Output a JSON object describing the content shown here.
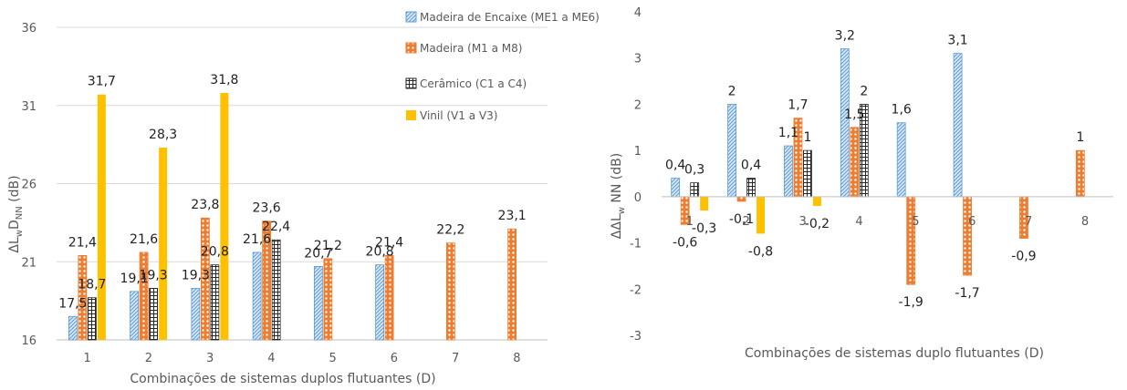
{
  "chart_data": [
    {
      "type": "bar",
      "categories": [
        "1",
        "2",
        "3",
        "4",
        "5",
        "6",
        "7",
        "8"
      ],
      "ylim": [
        16,
        36
      ],
      "yticks": [
        16,
        21,
        26,
        31,
        36
      ],
      "grid": true,
      "xlabel": "Combinações de sistemas duplos flutuantes (D)",
      "ylabel": "ΔLwDNN (dB)",
      "legend_position": "top-right",
      "series": [
        {
          "name": "Madeira de Encaixe (ME1 a ME6)",
          "pattern": "diagonal",
          "color": "#5b9bd5",
          "values": [
            17.5,
            19.1,
            19.3,
            21.6,
            20.7,
            20.8,
            null,
            null
          ]
        },
        {
          "name": "Madeira (M1 a M8)",
          "pattern": "dots",
          "color": "#ed7d31",
          "values": [
            21.4,
            21.6,
            23.8,
            23.6,
            21.2,
            21.4,
            22.2,
            23.1
          ]
        },
        {
          "name": "Cerâmico (C1 a C4)",
          "pattern": "grid",
          "color": "#262626",
          "values": [
            18.7,
            19.3,
            20.8,
            22.4,
            null,
            null,
            null,
            null
          ]
        },
        {
          "name": "Vinil (V1 a V3)",
          "pattern": "solid",
          "color": "#ffc000",
          "values": [
            31.7,
            28.3,
            31.8,
            null,
            null,
            null,
            null,
            null
          ]
        }
      ],
      "labels_text": [
        [
          "17,5",
          "19,1",
          "19,3",
          "21,6",
          "20,7",
          "20,8",
          "",
          ""
        ],
        [
          "21,4",
          "21,6",
          "23,8",
          "23,6",
          "21,2",
          "21,4",
          "22,2",
          "23,1"
        ],
        [
          "18,7",
          "19,3",
          "20,8",
          "22,4",
          "",
          "",
          "",
          ""
        ],
        [
          "31,7",
          "28,3",
          "31,8",
          "",
          "",
          "",
          "",
          ""
        ]
      ]
    },
    {
      "type": "bar",
      "categories": [
        "1",
        "2",
        "3",
        "4",
        "5",
        "6",
        "7",
        "8"
      ],
      "ylim": [
        -3,
        4
      ],
      "yticks": [
        -3,
        -2,
        -1,
        0,
        1,
        2,
        3,
        4
      ],
      "grid": false,
      "xlabel": "Combinações de sistemas duplo flutuantes (D)",
      "ylabel": "ΔΔLw NN (dB)",
      "series": [
        {
          "name": "Madeira de Encaixe (ME1 a ME6)",
          "pattern": "diagonal",
          "color": "#5b9bd5",
          "values": [
            0.4,
            2,
            1.1,
            3.2,
            1.6,
            3.1,
            null,
            null
          ]
        },
        {
          "name": "Madeira (M1 a M8)",
          "pattern": "dots",
          "color": "#ed7d31",
          "values": [
            -0.6,
            -0.1,
            1.7,
            1.5,
            -1.9,
            -1.7,
            -0.9,
            1
          ]
        },
        {
          "name": "Cerâmico (C1 a C4)",
          "pattern": "grid",
          "color": "#262626",
          "values": [
            0.3,
            0.4,
            1,
            2,
            null,
            null,
            null,
            null
          ]
        },
        {
          "name": "Vinil (V1 a V3)",
          "pattern": "solid",
          "color": "#ffc000",
          "values": [
            -0.3,
            -0.8,
            -0.2,
            null,
            null,
            null,
            null,
            null
          ]
        }
      ],
      "labels_text": [
        [
          "0,4",
          "2",
          "1,1",
          "3,2",
          "1,6",
          "3,1",
          "",
          ""
        ],
        [
          "-0,6",
          "-0,1",
          "1,7",
          "1,5",
          "-1,9",
          "-1,7",
          "-0,9",
          "1"
        ],
        [
          "0,3",
          "0,4",
          "1",
          "2",
          "",
          "",
          "",
          ""
        ],
        [
          "-0,3",
          "-0,8",
          "-0,2",
          "",
          "",
          "",
          "",
          ""
        ]
      ]
    }
  ]
}
